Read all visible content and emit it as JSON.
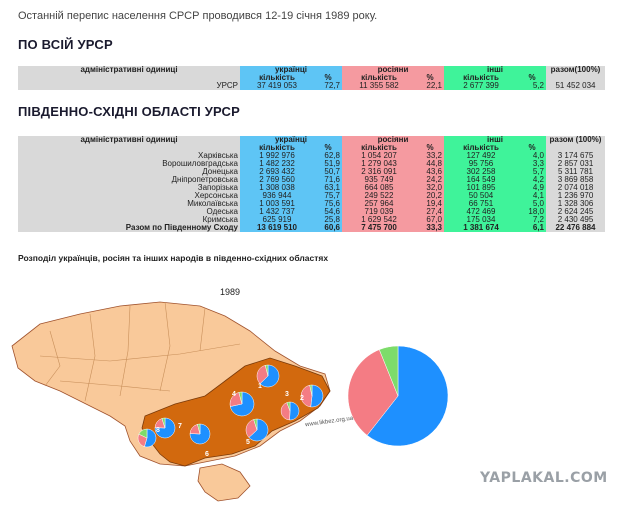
{
  "intro": "Останній перепис населення СРСР проводився 12-19 січня 1989 року.",
  "section1_title": "ПО ВСІЙ УРСР",
  "section2_title": "ПІВДЕННО-СХІДНІ ОБЛАСТІ УРСР",
  "table1": {
    "h_admin": "адміністративні одиниці",
    "h_ukr": "українці",
    "h_rus": "росіяни",
    "h_oth": "інші",
    "h_total": "разом(100%)",
    "h_count": "кількість",
    "h_pct": "%",
    "row": {
      "name": "УРСР",
      "ukr": "37 419 053",
      "ukr_pct": "72,7",
      "rus": "11 355 582",
      "rus_pct": "22,1",
      "oth": "2 677 399",
      "oth_pct": "5,2",
      "total": "51 452 034"
    }
  },
  "table2": {
    "h_admin": "адміністративні одиниці",
    "h_ukr": "українці",
    "h_rus": "росіяни",
    "h_oth": "інші",
    "h_total": "разом (100%)",
    "h_count": "кількість",
    "h_pct": "%",
    "rows": [
      {
        "name": "Харківська",
        "ukr": "1 992 976",
        "ukr_pct": "62,8",
        "rus": "1 054 207",
        "rus_pct": "33,2",
        "oth": "127 492",
        "oth_pct": "4,0",
        "total": "3 174 675"
      },
      {
        "name": "Ворошиловградська",
        "ukr": "1 482 232",
        "ukr_pct": "51,9",
        "rus": "1 279 043",
        "rus_pct": "44,8",
        "oth": "95 756",
        "oth_pct": "3,3",
        "total": "2 857 031"
      },
      {
        "name": "Донецька",
        "ukr": "2 693 432",
        "ukr_pct": "50,7",
        "rus": "2 316 091",
        "rus_pct": "43,6",
        "oth": "302 258",
        "oth_pct": "5,7",
        "total": "5 311 781"
      },
      {
        "name": "Дніпропетровська",
        "ukr": "2 769 560",
        "ukr_pct": "71,6",
        "rus": "935 749",
        "rus_pct": "24,2",
        "oth": "164 549",
        "oth_pct": "4,2",
        "total": "3 869 858"
      },
      {
        "name": "Запорізька",
        "ukr": "1 308 038",
        "ukr_pct": "63,1",
        "rus": "664 085",
        "rus_pct": "32,0",
        "oth": "101 895",
        "oth_pct": "4,9",
        "total": "2 074 018"
      },
      {
        "name": "Херсонська",
        "ukr": "936 944",
        "ukr_pct": "75,7",
        "rus": "249 522",
        "rus_pct": "20,2",
        "oth": "50 504",
        "oth_pct": "4,1",
        "total": "1 236 970"
      },
      {
        "name": "Миколаївська",
        "ukr": "1 003 591",
        "ukr_pct": "75,6",
        "rus": "257 964",
        "rus_pct": "19,4",
        "oth": "66 751",
        "oth_pct": "5,0",
        "total": "1 328 306"
      },
      {
        "name": "Одеська",
        "ukr": "1 432 737",
        "ukr_pct": "54,6",
        "rus": "719 039",
        "rus_pct": "27,4",
        "oth": "472 469",
        "oth_pct": "18,0",
        "total": "2 624 245"
      },
      {
        "name": "Кримська",
        "ukr": "625 919",
        "ukr_pct": "25,8",
        "rus": "1 629 542",
        "rus_pct": "67,0",
        "oth": "175 034",
        "oth_pct": "7,2",
        "total": "2 430 495"
      }
    ],
    "total_row": {
      "name": "Разом по Південному Сходу",
      "ukr": "13 619 510",
      "ukr_pct": "60,6",
      "rus": "7 475 700",
      "rus_pct": "33,3",
      "oth": "1 381 674",
      "oth_pct": "6,1",
      "total": "22 476 884"
    }
  },
  "map_caption": "Розподіл українців, росіян та інших народів в південно-східних областях",
  "map_year": "1989",
  "map_site": "www.likbez.org.ua",
  "map_numbers": [
    "1",
    "2",
    "3",
    "4",
    "5",
    "6",
    "7",
    "8"
  ],
  "pie_shares": [
    60.6,
    33.3,
    6.1
  ],
  "colors": {
    "ukrainians": "#1e90ff",
    "russians": "#f47c84",
    "others": "#7ddc6a",
    "region": "#d2690e",
    "country": "#f9c99a"
  },
  "watermark": "YAPLAKAL.COM"
}
